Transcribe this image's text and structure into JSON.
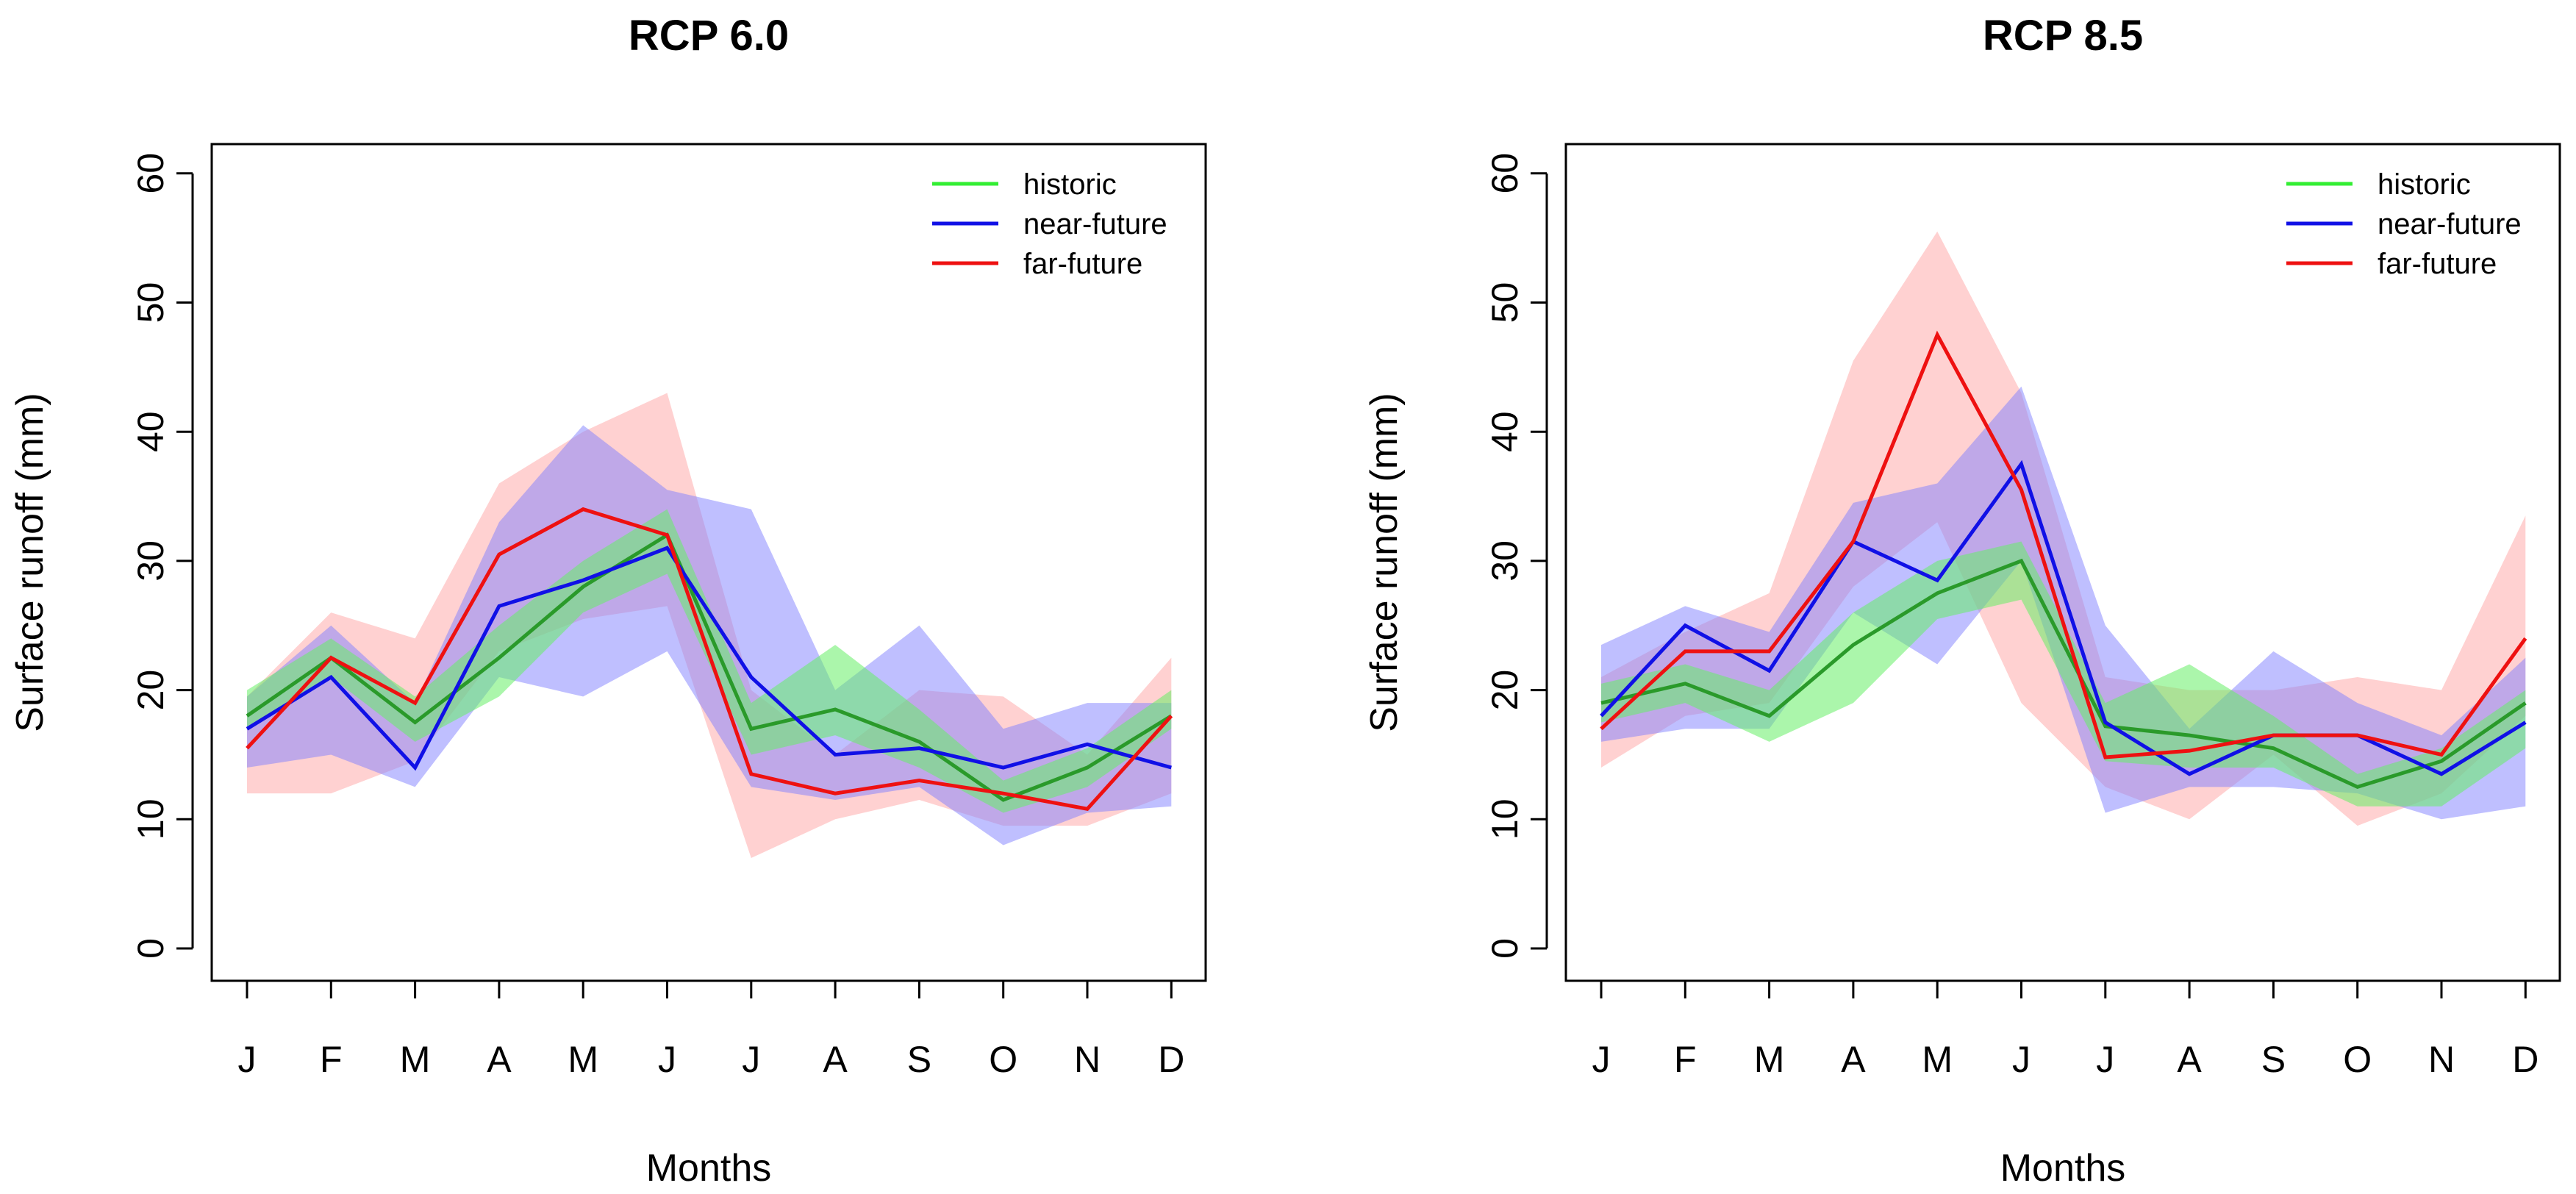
{
  "colors": {
    "historic": "#33ee33",
    "historic_line": "#2a9a2a",
    "historic_band": "#66ee66",
    "near_future": "#1010e6",
    "near_future_band": "#8080ff",
    "far_future": "#ee1111",
    "far_future_band": "#ff9999"
  },
  "chart_data": [
    {
      "type": "line",
      "title": "RCP 6.0",
      "xlabel": "Months",
      "ylabel": "Surface runoff (mm)",
      "ylim": [
        0,
        62
      ],
      "yticks": [
        "0",
        "10",
        "20",
        "30",
        "40",
        "50",
        "60"
      ],
      "categories": [
        "J",
        "F",
        "M",
        "A",
        "M",
        "J",
        "J",
        "A",
        "S",
        "O",
        "N",
        "D"
      ],
      "legend": [
        "historic",
        "near-future",
        "far-future"
      ],
      "legend_position": "top-right",
      "series": [
        {
          "name": "historic",
          "key": "historic",
          "values": [
            18,
            22.5,
            17.5,
            22.5,
            28,
            32,
            17,
            18.5,
            16,
            11.5,
            14,
            18
          ],
          "lower": [
            17,
            21,
            16,
            19.5,
            26,
            29,
            15,
            16.5,
            14,
            10.5,
            12.5,
            17
          ],
          "upper": [
            20,
            24,
            19.5,
            25,
            30,
            34,
            19,
            23.5,
            18.5,
            13,
            15.5,
            20
          ]
        },
        {
          "name": "near-future",
          "key": "near_future",
          "values": [
            17,
            21,
            14,
            26.5,
            28.5,
            31,
            21,
            15,
            15.5,
            14,
            15.8,
            14
          ],
          "lower": [
            14,
            15,
            12.5,
            21,
            19.5,
            23,
            12.5,
            11.5,
            12.5,
            8,
            10.5,
            11
          ],
          "upper": [
            19.5,
            25,
            19,
            33,
            40.5,
            35.5,
            34,
            20,
            25,
            17,
            19,
            19
          ]
        },
        {
          "name": "far-future",
          "key": "far_future",
          "values": [
            15.5,
            22.5,
            19,
            30.5,
            34,
            32,
            13.5,
            12,
            13,
            12,
            10.8,
            18
          ],
          "lower": [
            12,
            12,
            14.5,
            23,
            25.5,
            26.5,
            7,
            10,
            11.5,
            9.5,
            9.5,
            12
          ],
          "upper": [
            19.5,
            26,
            24,
            36,
            40,
            43,
            20,
            15,
            20,
            19.5,
            15,
            22.5
          ]
        }
      ]
    },
    {
      "type": "line",
      "title": "RCP 8.5",
      "xlabel": "Months",
      "ylabel": "Surface runoff (mm)",
      "ylim": [
        0,
        62
      ],
      "yticks": [
        "0",
        "10",
        "20",
        "30",
        "40",
        "50",
        "60"
      ],
      "categories": [
        "J",
        "F",
        "M",
        "A",
        "M",
        "J",
        "J",
        "A",
        "S",
        "O",
        "N",
        "D"
      ],
      "legend": [
        "historic",
        "near-future",
        "far-future"
      ],
      "legend_position": "top-right",
      "series": [
        {
          "name": "historic",
          "key": "historic",
          "values": [
            19,
            20.5,
            18,
            23.5,
            27.5,
            30,
            17.2,
            16.5,
            15.5,
            12.5,
            14.5,
            19
          ],
          "lower": [
            17.5,
            19,
            16,
            19,
            25.5,
            27,
            14.5,
            14,
            14,
            11,
            11,
            15.5
          ],
          "upper": [
            20.5,
            22,
            20,
            26,
            30,
            31.5,
            19,
            22,
            18,
            13.5,
            15.5,
            20
          ]
        },
        {
          "name": "near-future",
          "key": "near_future",
          "values": [
            18,
            25,
            21.5,
            31.5,
            28.5,
            37.5,
            17.5,
            13.5,
            16.5,
            16.5,
            13.5,
            17.5
          ],
          "lower": [
            16,
            17,
            17,
            26,
            22,
            30,
            10.5,
            12.5,
            12.5,
            12,
            10,
            11
          ],
          "upper": [
            23.5,
            26.5,
            24.5,
            34.5,
            36,
            43.5,
            25,
            17,
            23,
            19,
            16.5,
            22.5
          ]
        },
        {
          "name": "far-future",
          "key": "far_future",
          "values": [
            17,
            23,
            23,
            31.5,
            47.5,
            35.5,
            14.8,
            15.3,
            16.5,
            16.5,
            15,
            24
          ],
          "lower": [
            14,
            18,
            19,
            28,
            33,
            19,
            12.5,
            10,
            15,
            9.5,
            12,
            18
          ],
          "upper": [
            21,
            24.5,
            27.5,
            45.5,
            55.5,
            43,
            21,
            20,
            20,
            21,
            20,
            33.5
          ]
        }
      ]
    }
  ]
}
